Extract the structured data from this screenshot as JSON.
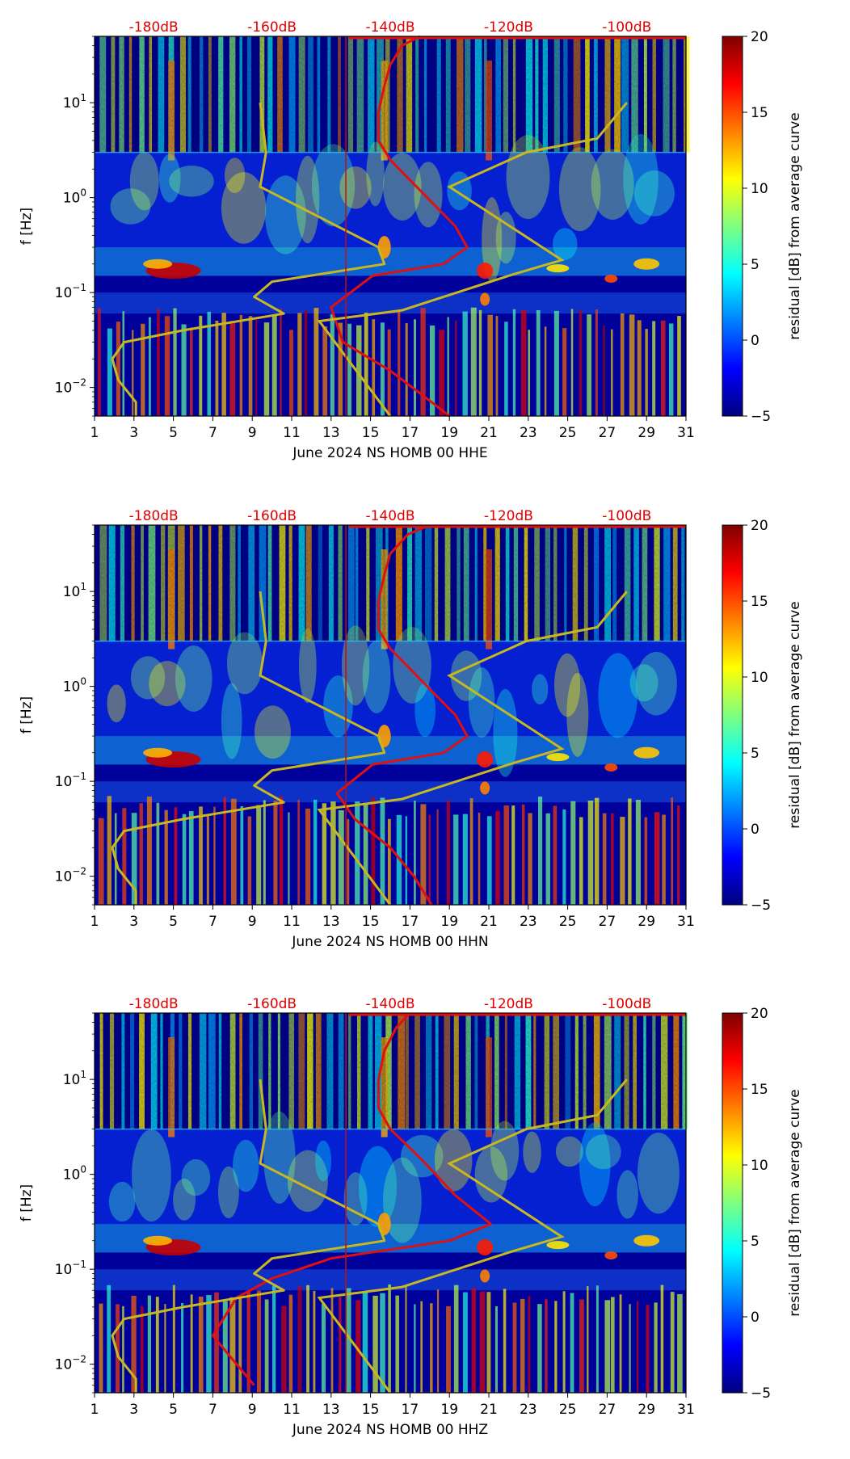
{
  "chart_data": [
    {
      "type": "heatmap",
      "xlabel": "June 2024 NS HOMB 00 HHE",
      "ylabel": "f [Hz]",
      "x_ticks": [
        "1",
        "3",
        "5",
        "7",
        "9",
        "11",
        "13",
        "15",
        "17",
        "19",
        "21",
        "23",
        "25",
        "27",
        "29",
        "31"
      ],
      "x_range": [
        1,
        31
      ],
      "y_scale": "log",
      "y_range": [
        0.005,
        50
      ],
      "y_ticks": [
        {
          "base": "10",
          "exp": "1"
        },
        {
          "base": "10",
          "exp": "0"
        },
        {
          "base": "10",
          "exp": "−1"
        },
        {
          "base": "10",
          "exp": "−2"
        }
      ],
      "top_axis_labels": [
        "-180dB",
        "-160dB",
        "-140dB",
        "-120dB",
        "-100dB"
      ],
      "colorbar": {
        "label": "residual [dB] from average curve",
        "ticks": [
          "20",
          "15",
          "10",
          "5",
          "0",
          "−5"
        ],
        "range": [
          -5,
          20
        ],
        "colormap": "jet"
      },
      "series": [
        {
          "name": "average PSD curve",
          "color": "#e01010",
          "points": [
            [
              -135,
              50
            ],
            [
              -138,
              40
            ],
            [
              -140,
              25
            ],
            [
              -141,
              15
            ],
            [
              -142,
              8
            ],
            [
              -142,
              4
            ],
            [
              -140,
              2.5
            ],
            [
              -135,
              1.2
            ],
            [
              -129,
              0.5
            ],
            [
              -127,
              0.3
            ],
            [
              -131,
              0.2
            ],
            [
              -143,
              0.15
            ],
            [
              -150,
              0.07
            ],
            [
              -148,
              0.03
            ],
            [
              -140,
              0.015
            ],
            [
              -133,
              0.007
            ],
            [
              -130,
              0.005
            ]
          ]
        },
        {
          "name": "noise model bounds",
          "color": "#c8b820",
          "points": [
            [
              -162,
              10
            ],
            [
              -161,
              3
            ],
            [
              -162,
              1.3
            ],
            [
              -142,
              0.3
            ],
            [
              -141,
              0.2
            ],
            [
              -160,
              0.13
            ],
            [
              -163,
              0.09
            ],
            [
              -158,
              0.06
            ],
            [
              -175,
              0.04
            ],
            [
              -185,
              0.03
            ],
            [
              -187,
              0.02
            ],
            [
              -186,
              0.012
            ],
            [
              -183,
              0.007
            ],
            [
              -183,
              0.005
            ]
          ]
        }
      ]
    },
    {
      "type": "heatmap",
      "xlabel": "June 2024 NS HOMB 00 HHN",
      "ylabel": "f [Hz]",
      "x_ticks": [
        "1",
        "3",
        "5",
        "7",
        "9",
        "11",
        "13",
        "15",
        "17",
        "19",
        "21",
        "23",
        "25",
        "27",
        "29",
        "31"
      ],
      "x_range": [
        1,
        31
      ],
      "y_scale": "log",
      "y_range": [
        0.005,
        50
      ],
      "y_ticks": [
        {
          "base": "10",
          "exp": "1"
        },
        {
          "base": "10",
          "exp": "0"
        },
        {
          "base": "10",
          "exp": "−1"
        },
        {
          "base": "10",
          "exp": "−2"
        }
      ],
      "top_axis_labels": [
        "-180dB",
        "-160dB",
        "-140dB",
        "-120dB",
        "-100dB"
      ],
      "colorbar": {
        "label": "residual [dB] from average curve",
        "ticks": [
          "20",
          "15",
          "10",
          "5",
          "0",
          "−5"
        ],
        "range": [
          -5,
          20
        ],
        "colormap": "jet"
      },
      "series": [
        {
          "name": "average PSD curve",
          "color": "#e01010",
          "points": [
            [
              -134,
              48
            ],
            [
              -137,
              40
            ],
            [
              -140,
              25
            ],
            [
              -141,
              15
            ],
            [
              -142,
              8
            ],
            [
              -142,
              4
            ],
            [
              -140,
              2.5
            ],
            [
              -135,
              1.2
            ],
            [
              -129,
              0.5
            ],
            [
              -127,
              0.3
            ],
            [
              -131,
              0.2
            ],
            [
              -143,
              0.15
            ],
            [
              -149,
              0.075
            ],
            [
              -146,
              0.04
            ],
            [
              -140,
              0.02
            ],
            [
              -136,
              0.01
            ],
            [
              -133,
              0.005
            ]
          ]
        },
        {
          "name": "noise model bounds",
          "color": "#c8b820",
          "points": [
            [
              -162,
              10
            ],
            [
              -161,
              3
            ],
            [
              -162,
              1.3
            ],
            [
              -142,
              0.3
            ],
            [
              -141,
              0.2
            ],
            [
              -160,
              0.13
            ],
            [
              -163,
              0.09
            ],
            [
              -158,
              0.06
            ],
            [
              -175,
              0.04
            ],
            [
              -185,
              0.03
            ],
            [
              -187,
              0.02
            ],
            [
              -186,
              0.012
            ],
            [
              -183,
              0.007
            ],
            [
              -183,
              0.005
            ]
          ]
        }
      ]
    },
    {
      "type": "heatmap",
      "xlabel": "June 2024 NS HOMB 00 HHZ",
      "ylabel": "f [Hz]",
      "x_ticks": [
        "1",
        "3",
        "5",
        "7",
        "9",
        "11",
        "13",
        "15",
        "17",
        "19",
        "21",
        "23",
        "25",
        "27",
        "29",
        "31"
      ],
      "x_range": [
        1,
        31
      ],
      "y_scale": "log",
      "y_range": [
        0.005,
        50
      ],
      "y_ticks": [
        {
          "base": "10",
          "exp": "1"
        },
        {
          "base": "10",
          "exp": "0"
        },
        {
          "base": "10",
          "exp": "−1"
        },
        {
          "base": "10",
          "exp": "−2"
        }
      ],
      "top_axis_labels": [
        "-180dB",
        "-160dB",
        "-140dB",
        "-120dB",
        "-100dB"
      ],
      "colorbar": {
        "label": "residual [dB] from average curve",
        "ticks": [
          "20",
          "15",
          "10",
          "5",
          "0",
          "−5"
        ],
        "range": [
          -5,
          20
        ],
        "colormap": "jet"
      },
      "series": [
        {
          "name": "average PSD curve",
          "color": "#e01010",
          "points": [
            [
              -137,
              48
            ],
            [
              -139,
              35
            ],
            [
              -141,
              20
            ],
            [
              -142,
              10
            ],
            [
              -142,
              5
            ],
            [
              -140,
              3
            ],
            [
              -135,
              1.5
            ],
            [
              -129,
              0.6
            ],
            [
              -123,
              0.3
            ],
            [
              -130,
              0.2
            ],
            [
              -150,
              0.13
            ],
            [
              -160,
              0.08
            ],
            [
              -166,
              0.05
            ],
            [
              -170,
              0.02
            ],
            [
              -166,
              0.01
            ],
            [
              -163,
              0.006
            ]
          ]
        },
        {
          "name": "noise model bounds",
          "color": "#c8b820",
          "points": [
            [
              -162,
              10
            ],
            [
              -161,
              3
            ],
            [
              -162,
              1.3
            ],
            [
              -142,
              0.3
            ],
            [
              -141,
              0.2
            ],
            [
              -160,
              0.13
            ],
            [
              -163,
              0.09
            ],
            [
              -158,
              0.06
            ],
            [
              -175,
              0.04
            ],
            [
              -185,
              0.03
            ],
            [
              -187,
              0.02
            ],
            [
              -186,
              0.012
            ],
            [
              -183,
              0.007
            ],
            [
              -183,
              0.005
            ]
          ]
        }
      ]
    }
  ]
}
